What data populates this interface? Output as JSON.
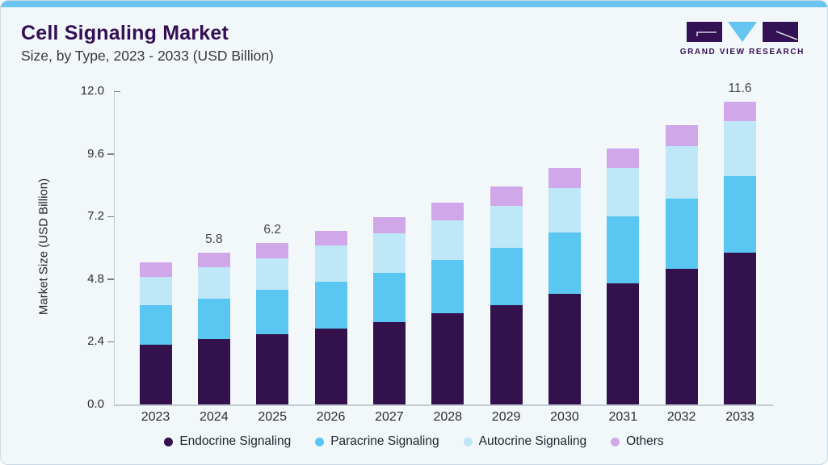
{
  "header": {
    "title": "Cell Signaling Market",
    "subtitle": "Size, by Type, 2023 - 2033 (USD Billion)",
    "logo_text": "GRAND VIEW RESEARCH"
  },
  "palette": {
    "accent_bar": "#69c5f0",
    "brand_purple": "#341055",
    "logo_triangle_blue": "#66c5f0",
    "card_bg": "#f2f7fa",
    "card_border": "#cbd8e2",
    "axis_line": "#c3ccd3"
  },
  "chart_data": {
    "type": "bar",
    "stacked": true,
    "title": "Cell Signaling Market Size, by Type, 2023 - 2033 (USD Billion)",
    "xlabel": "",
    "ylabel": "Market Size (USD Billion)",
    "ylim": [
      0,
      12
    ],
    "yticks": [
      "0.0",
      "2.4",
      "4.8",
      "7.2",
      "9.6",
      "12.0"
    ],
    "grid": false,
    "legend_position": "bottom",
    "categories": [
      "2023",
      "2024",
      "2025",
      "2026",
      "2027",
      "2028",
      "2029",
      "2030",
      "2031",
      "2032",
      "2033"
    ],
    "series": [
      {
        "name": "Endocrine Signaling",
        "color": "#33114d",
        "values": [
          2.3,
          2.5,
          2.7,
          2.9,
          3.15,
          3.5,
          3.8,
          4.25,
          4.65,
          5.2,
          5.8
        ]
      },
      {
        "name": "Paracrine Signaling",
        "color": "#5ac6f2",
        "values": [
          1.5,
          1.55,
          1.7,
          1.8,
          1.9,
          2.05,
          2.2,
          2.35,
          2.55,
          2.7,
          2.95
        ]
      },
      {
        "name": "Autocrine Signaling",
        "color": "#bee7f8",
        "values": [
          1.1,
          1.2,
          1.2,
          1.4,
          1.5,
          1.5,
          1.6,
          1.7,
          1.85,
          2.0,
          2.1
        ]
      },
      {
        "name": "Others",
        "color": "#d0a7e9",
        "values": [
          0.55,
          0.55,
          0.6,
          0.55,
          0.62,
          0.68,
          0.75,
          0.75,
          0.75,
          0.8,
          0.75
        ]
      }
    ],
    "bar_total_labels": [
      "",
      "5.8",
      "6.2",
      "",
      "",
      "",
      "",
      "",
      "",
      "",
      "11.6"
    ]
  }
}
